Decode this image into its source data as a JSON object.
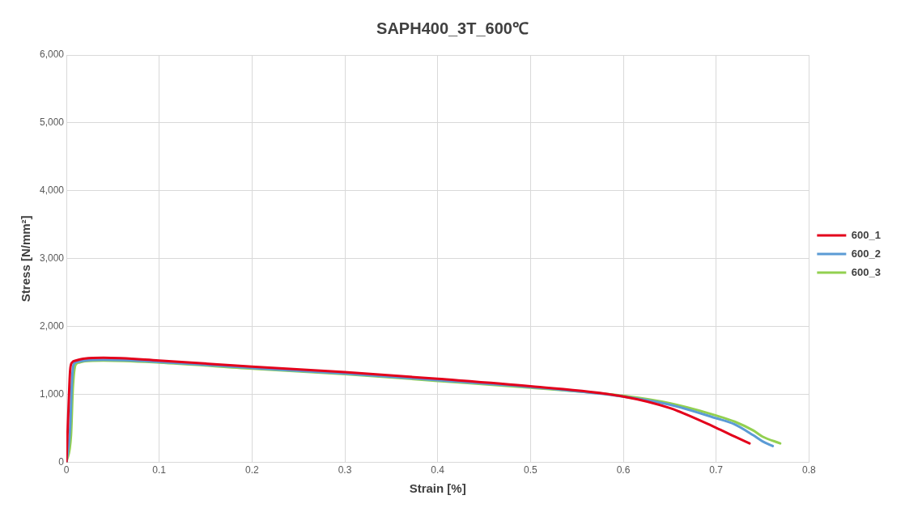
{
  "chart_data": {
    "type": "line",
    "title": "SAPH400_3T_600℃",
    "xlabel": "Strain [%]",
    "ylabel": "Stress [N/mm²]",
    "xlim": [
      0,
      0.8
    ],
    "xticks": [
      0,
      0.1,
      0.2,
      0.3,
      0.4,
      0.5,
      0.6,
      0.7,
      0.8
    ],
    "ylim": [
      0,
      6000
    ],
    "yticks": [
      0,
      {
        "value": 1000,
        "label": "1,000"
      },
      {
        "value": 2000,
        "label": "2,000"
      },
      {
        "value": 3000,
        "label": "3,000"
      },
      {
        "value": 4000,
        "label": "4,000"
      },
      {
        "value": 5000,
        "label": "5,000"
      },
      {
        "value": 6000,
        "label": "6,000"
      }
    ],
    "grid": true,
    "legend": "right",
    "marker": "none",
    "line_style": "solid",
    "series": [
      {
        "name": "600_1",
        "color": "#e3001b",
        "x": [
          0,
          0.002,
          0.004,
          0.006,
          0.01,
          0.02,
          0.04,
          0.1,
          0.2,
          0.3,
          0.4,
          0.5,
          0.6,
          0.65,
          0.7,
          0.72,
          0.736
        ],
        "values": [
          0,
          700,
          1350,
          1470,
          1500,
          1530,
          1540,
          1500,
          1410,
          1330,
          1230,
          1120,
          970,
          800,
          510,
          380,
          280
        ]
      },
      {
        "name": "600_2",
        "color": "#5b9bd5",
        "x": [
          0,
          0.004,
          0.006,
          0.008,
          0.012,
          0.02,
          0.04,
          0.1,
          0.2,
          0.3,
          0.4,
          0.5,
          0.6,
          0.65,
          0.7,
          0.72,
          0.74,
          0.75,
          0.761
        ],
        "values": [
          0,
          500,
          1200,
          1450,
          1480,
          1500,
          1510,
          1480,
          1390,
          1310,
          1210,
          1110,
          970,
          850,
          650,
          560,
          400,
          310,
          240
        ]
      },
      {
        "name": "600_3",
        "color": "#92d050",
        "x": [
          0,
          0.005,
          0.007,
          0.01,
          0.014,
          0.02,
          0.04,
          0.1,
          0.2,
          0.3,
          0.4,
          0.5,
          0.6,
          0.65,
          0.7,
          0.72,
          0.74,
          0.75,
          0.769
        ],
        "values": [
          0,
          400,
          1100,
          1440,
          1470,
          1490,
          1500,
          1470,
          1380,
          1300,
          1200,
          1100,
          980,
          870,
          690,
          600,
          470,
          380,
          280
        ]
      }
    ]
  }
}
